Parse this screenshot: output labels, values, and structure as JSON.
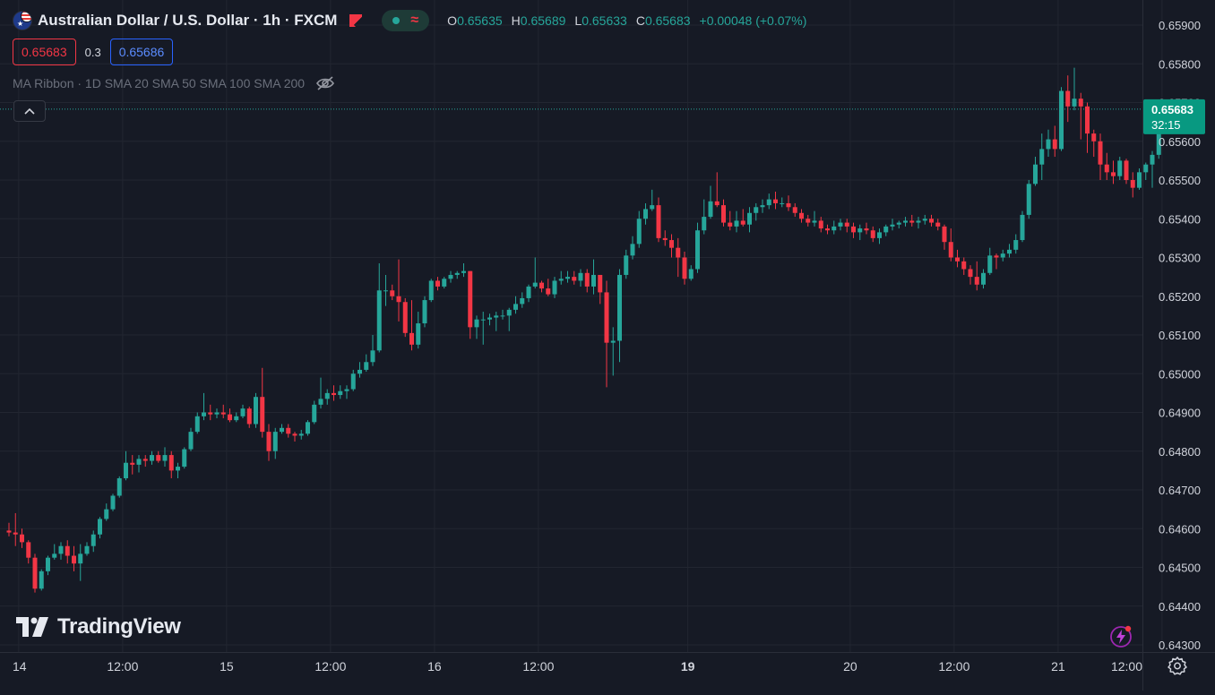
{
  "header": {
    "title": "Australian Dollar / U.S. Dollar · 1h · FXCM",
    "ohlc": [
      {
        "key": "O",
        "value": "0.65635"
      },
      {
        "key": "H",
        "value": "0.65689"
      },
      {
        "key": "L",
        "value": "0.65633"
      },
      {
        "key": "C",
        "value": "0.65683"
      }
    ],
    "change": "+0.00048 (+0.07%)"
  },
  "prices": {
    "sell": "0.65683",
    "spread": "0.3",
    "buy": "0.65686"
  },
  "indicator": {
    "label": "MA Ribbon · 1D SMA 20 SMA 50 SMA 100 SMA 200"
  },
  "price_tag": {
    "price": "0.65683",
    "countdown": "32:15"
  },
  "logo": {
    "text": "TradingView"
  },
  "colors": {
    "background": "#161a25",
    "grid": "#222631",
    "up": "#26a69a",
    "down": "#f23645",
    "axis_text": "#d1d4dc"
  },
  "chart_data": {
    "type": "candlestick",
    "title": "",
    "xlabel": "",
    "ylabel": "",
    "ylim": [
      0.643,
      0.659
    ],
    "y_ticks": [
      0.643,
      0.644,
      0.645,
      0.646,
      0.647,
      0.648,
      0.649,
      0.65,
      0.651,
      0.652,
      0.653,
      0.654,
      0.655,
      0.656,
      0.657,
      0.658,
      0.659
    ],
    "y_tick_labels": [
      "0.64300",
      "0.64400",
      "0.64500",
      "0.64600",
      "0.64700",
      "0.64800",
      "0.64900",
      "0.65000",
      "0.65100",
      "0.65200",
      "0.65300",
      "0.65400",
      "0.65500",
      "0.65600",
      "0.65700",
      "0.65800",
      "0.65900"
    ],
    "x_ticks": [
      {
        "label": "14",
        "index": 1.5,
        "bold": false
      },
      {
        "label": "12:00",
        "index": 17.5,
        "bold": false
      },
      {
        "label": "15",
        "index": 33.5,
        "bold": false
      },
      {
        "label": "12:00",
        "index": 49.5,
        "bold": false
      },
      {
        "label": "16",
        "index": 65.5,
        "bold": false
      },
      {
        "label": "12:00",
        "index": 81.5,
        "bold": false
      },
      {
        "label": "19",
        "index": 104.5,
        "bold": true
      },
      {
        "label": "20",
        "index": 129.5,
        "bold": false
      },
      {
        "label": "12:00",
        "index": 145.5,
        "bold": false
      },
      {
        "label": "21",
        "index": 161.5,
        "bold": false
      },
      {
        "label": "12:00",
        "index": 177.5,
        "bold": false
      }
    ],
    "last_price": 0.65683,
    "candles": [
      [
        0.64595,
        0.64615,
        0.6458,
        0.6459
      ],
      [
        0.6459,
        0.6464,
        0.64555,
        0.64585
      ],
      [
        0.64585,
        0.646,
        0.6455,
        0.64565
      ],
      [
        0.64565,
        0.6457,
        0.6451,
        0.64525
      ],
      [
        0.64525,
        0.64535,
        0.64435,
        0.64445
      ],
      [
        0.64445,
        0.64495,
        0.6444,
        0.6449
      ],
      [
        0.6449,
        0.6453,
        0.6448,
        0.64525
      ],
      [
        0.64525,
        0.6456,
        0.6452,
        0.64535
      ],
      [
        0.64535,
        0.64565,
        0.6452,
        0.64555
      ],
      [
        0.64555,
        0.6457,
        0.6451,
        0.6453
      ],
      [
        0.6453,
        0.64555,
        0.6449,
        0.6451
      ],
      [
        0.6451,
        0.6456,
        0.64465,
        0.64535
      ],
      [
        0.64535,
        0.64565,
        0.6453,
        0.64555
      ],
      [
        0.64555,
        0.64595,
        0.6454,
        0.64585
      ],
      [
        0.64585,
        0.6463,
        0.64575,
        0.64625
      ],
      [
        0.64625,
        0.64665,
        0.6462,
        0.6465
      ],
      [
        0.6465,
        0.6469,
        0.64645,
        0.64685
      ],
      [
        0.64685,
        0.64735,
        0.6468,
        0.6473
      ],
      [
        0.6473,
        0.648,
        0.64725,
        0.6477
      ],
      [
        0.6477,
        0.6479,
        0.6474,
        0.64765
      ],
      [
        0.64765,
        0.6479,
        0.64745,
        0.6478
      ],
      [
        0.6478,
        0.6479,
        0.6476,
        0.64775
      ],
      [
        0.64775,
        0.648,
        0.64765,
        0.6479
      ],
      [
        0.6479,
        0.648,
        0.6477,
        0.64775
      ],
      [
        0.64775,
        0.6481,
        0.6476,
        0.6479
      ],
      [
        0.6479,
        0.648,
        0.6473,
        0.6475
      ],
      [
        0.6475,
        0.6477,
        0.6473,
        0.6476
      ],
      [
        0.6476,
        0.6481,
        0.64755,
        0.64805
      ],
      [
        0.64805,
        0.6486,
        0.648,
        0.6485
      ],
      [
        0.6485,
        0.649,
        0.64845,
        0.6489
      ],
      [
        0.6489,
        0.6495,
        0.6488,
        0.649
      ],
      [
        0.649,
        0.6492,
        0.6488,
        0.64895
      ],
      [
        0.64895,
        0.6491,
        0.64885,
        0.649
      ],
      [
        0.649,
        0.6492,
        0.64885,
        0.64895
      ],
      [
        0.64895,
        0.6491,
        0.64875,
        0.6488
      ],
      [
        0.6488,
        0.649,
        0.64875,
        0.6489
      ],
      [
        0.6489,
        0.6492,
        0.64885,
        0.6491
      ],
      [
        0.6491,
        0.64915,
        0.6486,
        0.6487
      ],
      [
        0.6487,
        0.6495,
        0.6486,
        0.6494
      ],
      [
        0.6494,
        0.65015,
        0.64835,
        0.6485
      ],
      [
        0.6485,
        0.6487,
        0.64775,
        0.648
      ],
      [
        0.648,
        0.6486,
        0.6478,
        0.6485
      ],
      [
        0.6485,
        0.6487,
        0.64845,
        0.6486
      ],
      [
        0.6486,
        0.6487,
        0.64835,
        0.64845
      ],
      [
        0.64845,
        0.6485,
        0.64825,
        0.6484
      ],
      [
        0.6484,
        0.64855,
        0.6483,
        0.64845
      ],
      [
        0.64845,
        0.6488,
        0.6484,
        0.64875
      ],
      [
        0.64875,
        0.6493,
        0.6487,
        0.6492
      ],
      [
        0.6492,
        0.6499,
        0.6491,
        0.64935
      ],
      [
        0.64935,
        0.6496,
        0.6492,
        0.6495
      ],
      [
        0.6495,
        0.6497,
        0.6493,
        0.64945
      ],
      [
        0.64945,
        0.6497,
        0.64935,
        0.64955
      ],
      [
        0.64955,
        0.6497,
        0.64935,
        0.6496
      ],
      [
        0.6496,
        0.6501,
        0.64955,
        0.65
      ],
      [
        0.65,
        0.6503,
        0.6499,
        0.6501
      ],
      [
        0.6501,
        0.6505,
        0.65005,
        0.6503
      ],
      [
        0.6503,
        0.651,
        0.6502,
        0.6506
      ],
      [
        0.6506,
        0.65285,
        0.65055,
        0.65215
      ],
      [
        0.65215,
        0.65255,
        0.65175,
        0.65215
      ],
      [
        0.65215,
        0.6523,
        0.6519,
        0.652
      ],
      [
        0.652,
        0.65295,
        0.65135,
        0.65185
      ],
      [
        0.65185,
        0.65195,
        0.65095,
        0.65105
      ],
      [
        0.65105,
        0.6519,
        0.6506,
        0.65075
      ],
      [
        0.65075,
        0.6516,
        0.65065,
        0.6513
      ],
      [
        0.6513,
        0.652,
        0.6512,
        0.6519
      ],
      [
        0.6519,
        0.65245,
        0.65185,
        0.6524
      ],
      [
        0.6524,
        0.6525,
        0.65215,
        0.65225
      ],
      [
        0.65225,
        0.6525,
        0.6522,
        0.65245
      ],
      [
        0.65245,
        0.65265,
        0.65235,
        0.65255
      ],
      [
        0.65255,
        0.65265,
        0.65245,
        0.6526
      ],
      [
        0.6526,
        0.65285,
        0.6525,
        0.65265
      ],
      [
        0.65265,
        0.65265,
        0.6509,
        0.6512
      ],
      [
        0.6512,
        0.6515,
        0.6509,
        0.6514
      ],
      [
        0.6514,
        0.6516,
        0.65075,
        0.6514
      ],
      [
        0.6514,
        0.65155,
        0.65125,
        0.65145
      ],
      [
        0.65145,
        0.6516,
        0.6511,
        0.6515
      ],
      [
        0.6515,
        0.65165,
        0.6514,
        0.6515
      ],
      [
        0.6515,
        0.6517,
        0.6511,
        0.65165
      ],
      [
        0.65165,
        0.652,
        0.65155,
        0.6518
      ],
      [
        0.6518,
        0.6521,
        0.6517,
        0.65195
      ],
      [
        0.65195,
        0.6523,
        0.65185,
        0.65225
      ],
      [
        0.65225,
        0.653,
        0.6522,
        0.65235
      ],
      [
        0.65235,
        0.6524,
        0.6521,
        0.6522
      ],
      [
        0.6522,
        0.65245,
        0.652,
        0.65205
      ],
      [
        0.65205,
        0.6525,
        0.65195,
        0.6524
      ],
      [
        0.6524,
        0.65265,
        0.6523,
        0.65245
      ],
      [
        0.65245,
        0.65265,
        0.65235,
        0.6525
      ],
      [
        0.6525,
        0.65265,
        0.6523,
        0.6524
      ],
      [
        0.6524,
        0.6527,
        0.65225,
        0.6526
      ],
      [
        0.6526,
        0.6527,
        0.6521,
        0.65225
      ],
      [
        0.65225,
        0.65295,
        0.65205,
        0.65255
      ],
      [
        0.65255,
        0.65255,
        0.6518,
        0.6521
      ],
      [
        0.6521,
        0.6524,
        0.64965,
        0.6508
      ],
      [
        0.6508,
        0.6512,
        0.64995,
        0.65085
      ],
      [
        0.65085,
        0.6527,
        0.6503,
        0.65255
      ],
      [
        0.65255,
        0.6532,
        0.65245,
        0.65305
      ],
      [
        0.65305,
        0.65355,
        0.65295,
        0.65335
      ],
      [
        0.65335,
        0.6542,
        0.65325,
        0.654
      ],
      [
        0.654,
        0.6544,
        0.65385,
        0.65425
      ],
      [
        0.65425,
        0.65475,
        0.6542,
        0.65435
      ],
      [
        0.65435,
        0.65455,
        0.6534,
        0.6535
      ],
      [
        0.6535,
        0.6537,
        0.6533,
        0.65345
      ],
      [
        0.65345,
        0.6536,
        0.653,
        0.65325
      ],
      [
        0.65325,
        0.6535,
        0.6525,
        0.653
      ],
      [
        0.653,
        0.65315,
        0.6523,
        0.65245
      ],
      [
        0.65245,
        0.6528,
        0.6524,
        0.6527
      ],
      [
        0.6527,
        0.6539,
        0.6526,
        0.6537
      ],
      [
        0.6537,
        0.6545,
        0.6536,
        0.65405
      ],
      [
        0.65405,
        0.65485,
        0.654,
        0.65445
      ],
      [
        0.65445,
        0.6552,
        0.6543,
        0.65435
      ],
      [
        0.65435,
        0.6545,
        0.6538,
        0.6539
      ],
      [
        0.6539,
        0.6542,
        0.6537,
        0.6538
      ],
      [
        0.6538,
        0.6542,
        0.65365,
        0.65395
      ],
      [
        0.65395,
        0.65425,
        0.6538,
        0.65385
      ],
      [
        0.65385,
        0.6543,
        0.65365,
        0.65415
      ],
      [
        0.65415,
        0.6544,
        0.65395,
        0.6543
      ],
      [
        0.6543,
        0.6545,
        0.65415,
        0.65435
      ],
      [
        0.65435,
        0.65465,
        0.65425,
        0.6545
      ],
      [
        0.6545,
        0.6547,
        0.65425,
        0.6544
      ],
      [
        0.6544,
        0.65455,
        0.6543,
        0.6544
      ],
      [
        0.6544,
        0.6546,
        0.6542,
        0.6543
      ],
      [
        0.6543,
        0.6544,
        0.65405,
        0.65415
      ],
      [
        0.65415,
        0.65425,
        0.6539,
        0.654
      ],
      [
        0.654,
        0.6541,
        0.6538,
        0.6539
      ],
      [
        0.6539,
        0.6542,
        0.6538,
        0.65395
      ],
      [
        0.65395,
        0.65405,
        0.65365,
        0.65375
      ],
      [
        0.65375,
        0.65385,
        0.6536,
        0.6537
      ],
      [
        0.6537,
        0.65395,
        0.6536,
        0.6538
      ],
      [
        0.6538,
        0.654,
        0.6537,
        0.6539
      ],
      [
        0.6539,
        0.654,
        0.65365,
        0.6538
      ],
      [
        0.6538,
        0.6539,
        0.6535,
        0.65365
      ],
      [
        0.65365,
        0.65385,
        0.65345,
        0.65375
      ],
      [
        0.65375,
        0.6539,
        0.6536,
        0.6537
      ],
      [
        0.6537,
        0.6538,
        0.6534,
        0.6535
      ],
      [
        0.6535,
        0.65375,
        0.65335,
        0.65365
      ],
      [
        0.65365,
        0.65385,
        0.65355,
        0.6538
      ],
      [
        0.6538,
        0.654,
        0.6537,
        0.65385
      ],
      [
        0.65385,
        0.65395,
        0.65375,
        0.6539
      ],
      [
        0.6539,
        0.65405,
        0.6538,
        0.65395
      ],
      [
        0.65395,
        0.6541,
        0.6538,
        0.6539
      ],
      [
        0.6539,
        0.65405,
        0.65375,
        0.65395
      ],
      [
        0.65395,
        0.6541,
        0.65385,
        0.654
      ],
      [
        0.654,
        0.6541,
        0.6538,
        0.6539
      ],
      [
        0.6539,
        0.654,
        0.6537,
        0.6538
      ],
      [
        0.6538,
        0.65385,
        0.6532,
        0.6534
      ],
      [
        0.6534,
        0.65375,
        0.6529,
        0.653
      ],
      [
        0.653,
        0.6532,
        0.65275,
        0.6529
      ],
      [
        0.6529,
        0.653,
        0.65255,
        0.6527
      ],
      [
        0.6527,
        0.6528,
        0.6523,
        0.6525
      ],
      [
        0.6525,
        0.6529,
        0.65215,
        0.6523
      ],
      [
        0.6523,
        0.6527,
        0.6522,
        0.6526
      ],
      [
        0.6526,
        0.65325,
        0.65255,
        0.65305
      ],
      [
        0.65305,
        0.6531,
        0.6527,
        0.653
      ],
      [
        0.653,
        0.6532,
        0.6529,
        0.6531
      ],
      [
        0.6531,
        0.65335,
        0.653,
        0.6532
      ],
      [
        0.6532,
        0.6536,
        0.6531,
        0.65345
      ],
      [
        0.65345,
        0.6542,
        0.6534,
        0.6541
      ],
      [
        0.6541,
        0.655,
        0.654,
        0.6549
      ],
      [
        0.6549,
        0.6556,
        0.65485,
        0.6554
      ],
      [
        0.6554,
        0.6562,
        0.655,
        0.6558
      ],
      [
        0.6558,
        0.6563,
        0.6556,
        0.65605
      ],
      [
        0.65605,
        0.6564,
        0.6556,
        0.6558
      ],
      [
        0.6558,
        0.6574,
        0.65575,
        0.6573
      ],
      [
        0.6573,
        0.6577,
        0.6565,
        0.6569
      ],
      [
        0.6569,
        0.6579,
        0.6568,
        0.6571
      ],
      [
        0.6571,
        0.65725,
        0.65605,
        0.6569
      ],
      [
        0.6569,
        0.657,
        0.6557,
        0.6562
      ],
      [
        0.6562,
        0.6563,
        0.6556,
        0.656
      ],
      [
        0.656,
        0.6562,
        0.655,
        0.6554
      ],
      [
        0.6554,
        0.6557,
        0.655,
        0.6552
      ],
      [
        0.6552,
        0.6555,
        0.6549,
        0.6551
      ],
      [
        0.6551,
        0.6556,
        0.655,
        0.6555
      ],
      [
        0.6555,
        0.65555,
        0.6549,
        0.655
      ],
      [
        0.655,
        0.6552,
        0.65455,
        0.6548
      ],
      [
        0.6548,
        0.6553,
        0.65475,
        0.6552
      ],
      [
        0.6552,
        0.65545,
        0.655,
        0.6554
      ],
      [
        0.6554,
        0.65575,
        0.6548,
        0.65565
      ],
      [
        0.65565,
        0.6564,
        0.65555,
        0.65635
      ],
      [
        0.65635,
        0.65689,
        0.65633,
        0.65683
      ]
    ]
  }
}
